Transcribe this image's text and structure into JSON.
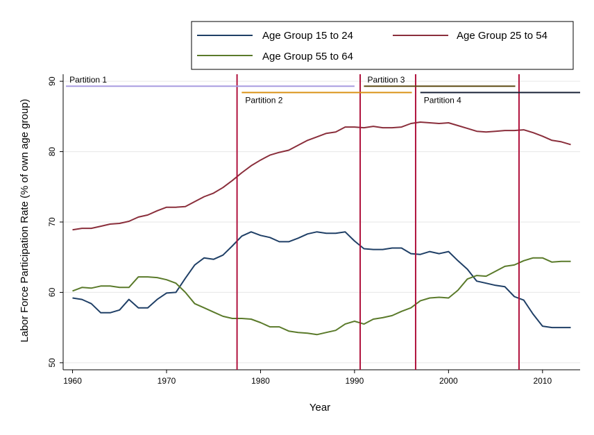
{
  "chart_data": {
    "type": "line",
    "title": "",
    "xlabel": "Year",
    "ylabel": "Labor Force Participation Rate (% of own age group)",
    "xlim": [
      1959,
      2014
    ],
    "ylim": [
      49,
      91
    ],
    "x_ticks": [
      1960,
      1970,
      1980,
      1990,
      2000,
      2010
    ],
    "y_ticks": [
      50,
      60,
      70,
      80,
      90
    ],
    "grid": true,
    "legend_position": "top-right",
    "series": [
      {
        "name": "Age Group 15 to 24",
        "color": "#1f3f66",
        "x": [
          1960,
          1961,
          1962,
          1963,
          1964,
          1965,
          1966,
          1967,
          1968,
          1969,
          1970,
          1971,
          1972,
          1973,
          1974,
          1975,
          1976,
          1977,
          1978,
          1979,
          1980,
          1981,
          1982,
          1983,
          1984,
          1985,
          1986,
          1987,
          1988,
          1989,
          1990,
          1991,
          1992,
          1993,
          1994,
          1995,
          1996,
          1997,
          1998,
          1999,
          2000,
          2001,
          2002,
          2003,
          2004,
          2005,
          2006,
          2007,
          2008,
          2009,
          2010,
          2011,
          2012,
          2013
        ],
        "y": [
          59.2,
          59.0,
          58.4,
          57.1,
          57.1,
          57.5,
          59.0,
          57.8,
          57.8,
          59.0,
          59.9,
          60.0,
          62.0,
          63.9,
          64.9,
          64.7,
          65.3,
          66.6,
          68.0,
          68.6,
          68.1,
          67.8,
          67.2,
          67.2,
          67.7,
          68.3,
          68.6,
          68.4,
          68.4,
          68.6,
          67.3,
          66.2,
          66.1,
          66.1,
          66.3,
          66.3,
          65.5,
          65.4,
          65.8,
          65.5,
          65.8,
          64.5,
          63.3,
          61.6,
          61.3,
          61.0,
          60.8,
          59.4,
          58.9,
          56.9,
          55.2,
          55.0,
          55.0,
          55.0
        ]
      },
      {
        "name": "Age Group 25 to 54",
        "color": "#8a2e3b",
        "x": [
          1960,
          1961,
          1962,
          1963,
          1964,
          1965,
          1966,
          1967,
          1968,
          1969,
          1970,
          1971,
          1972,
          1973,
          1974,
          1975,
          1976,
          1977,
          1978,
          1979,
          1980,
          1981,
          1982,
          1983,
          1984,
          1985,
          1986,
          1987,
          1988,
          1989,
          1990,
          1991,
          1992,
          1993,
          1994,
          1995,
          1996,
          1997,
          1998,
          1999,
          2000,
          2001,
          2002,
          2003,
          2004,
          2005,
          2006,
          2007,
          2008,
          2009,
          2010,
          2011,
          2012,
          2013
        ],
        "y": [
          68.9,
          69.1,
          69.1,
          69.4,
          69.7,
          69.8,
          70.1,
          70.7,
          71.0,
          71.6,
          72.1,
          72.1,
          72.2,
          72.9,
          73.6,
          74.1,
          74.9,
          75.9,
          77.0,
          78.0,
          78.8,
          79.5,
          79.9,
          80.2,
          80.9,
          81.6,
          82.1,
          82.6,
          82.8,
          83.5,
          83.5,
          83.4,
          83.6,
          83.4,
          83.4,
          83.5,
          84.0,
          84.2,
          84.1,
          84.0,
          84.1,
          83.7,
          83.3,
          82.9,
          82.8,
          82.9,
          83.0,
          83.0,
          83.1,
          82.7,
          82.2,
          81.6,
          81.4,
          81.0
        ]
      },
      {
        "name": "Age Group 55 to 64",
        "color": "#5a7a2a",
        "x": [
          1960,
          1961,
          1962,
          1963,
          1964,
          1965,
          1966,
          1967,
          1968,
          1969,
          1970,
          1971,
          1972,
          1973,
          1974,
          1975,
          1976,
          1977,
          1978,
          1979,
          1980,
          1981,
          1982,
          1983,
          1984,
          1985,
          1986,
          1987,
          1988,
          1989,
          1990,
          1991,
          1992,
          1993,
          1994,
          1995,
          1996,
          1997,
          1998,
          1999,
          2000,
          2001,
          2002,
          2003,
          2004,
          2005,
          2006,
          2007,
          2008,
          2009,
          2010,
          2011,
          2012,
          2013
        ],
        "y": [
          60.2,
          60.7,
          60.6,
          60.9,
          60.9,
          60.7,
          60.7,
          62.2,
          62.2,
          62.1,
          61.8,
          61.3,
          60.0,
          58.4,
          57.8,
          57.2,
          56.6,
          56.3,
          56.3,
          56.2,
          55.7,
          55.1,
          55.1,
          54.5,
          54.3,
          54.2,
          54.0,
          54.3,
          54.6,
          55.5,
          55.9,
          55.5,
          56.2,
          56.4,
          56.7,
          57.3,
          57.8,
          58.8,
          59.2,
          59.3,
          59.2,
          60.3,
          61.9,
          62.4,
          62.3,
          63.0,
          63.7,
          63.9,
          64.5,
          64.9,
          64.9,
          64.3,
          64.4,
          64.4
        ]
      }
    ],
    "vertical_lines": {
      "color": "#b0113c",
      "x": [
        1977.5,
        1990.6,
        1996.5,
        2007.5
      ]
    },
    "partitions": [
      {
        "label": "Partition 1",
        "x_start": 1959.3,
        "x_end": 1990.0,
        "y": 89.3,
        "color": "#a89be0",
        "label_side": "above"
      },
      {
        "label": "Partition 2",
        "x_start": 1978.0,
        "x_end": 1996.1,
        "y": 88.4,
        "color": "#d99216",
        "label_side": "below"
      },
      {
        "label": "Partition 3",
        "x_start": 1991.0,
        "x_end": 2007.1,
        "y": 89.3,
        "color": "#5e4a14",
        "label_side": "above"
      },
      {
        "label": "Partition 4",
        "x_start": 1997.0,
        "x_end": 2014.0,
        "y": 88.4,
        "color": "#1a2338",
        "label_side": "below"
      }
    ]
  }
}
